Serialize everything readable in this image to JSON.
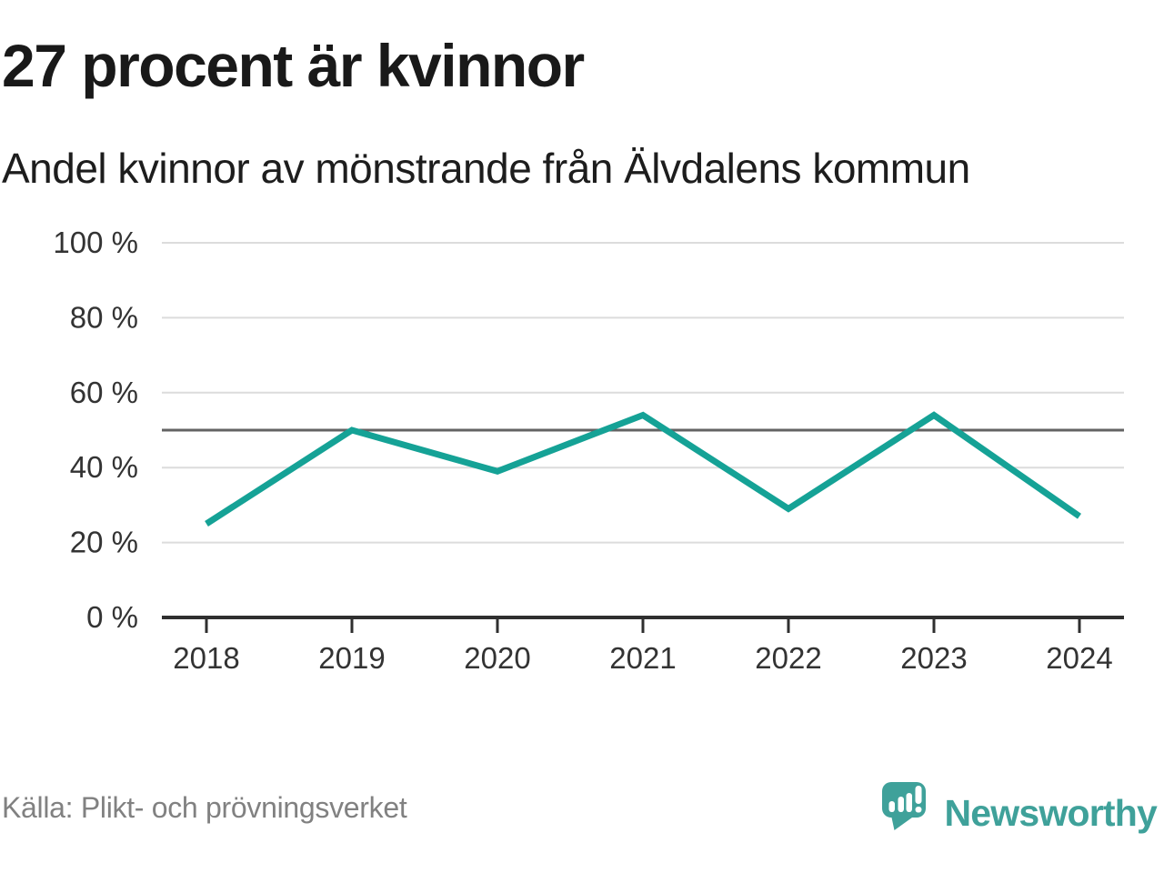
{
  "header": {
    "title": "27 procent är kvinnor",
    "subtitle": "Andel kvinnor av mönstrande från Älvdalens kommun"
  },
  "chart_data": {
    "type": "line",
    "title": "27 procent är kvinnor",
    "subtitle": "Andel kvinnor av mönstrande från Älvdalens kommun",
    "categories": [
      "2018",
      "2019",
      "2020",
      "2021",
      "2022",
      "2023",
      "2024"
    ],
    "series": [
      {
        "name": "Andel kvinnor av mönstrande",
        "values": [
          25,
          50,
          39,
          54,
          29,
          54,
          27
        ]
      }
    ],
    "unit": "%",
    "ylim": [
      0,
      100
    ],
    "yticks": [
      0,
      20,
      40,
      60,
      80,
      100
    ],
    "ytick_labels": [
      "0 %",
      "20 %",
      "40 %",
      "60 %",
      "80 %",
      "100 %"
    ],
    "reference_line": 50,
    "grid": "horizontal",
    "legend": "none",
    "colors": {
      "line": "#15a296",
      "gridline": "#dcdcdc",
      "reference_line": "#636363",
      "axis": "#2f2f2f",
      "tick_label": "#333333"
    }
  },
  "footer": {
    "source": "Källa: Plikt- och prövningsverket",
    "brand": "Newsworthy",
    "brand_color": "#3fa19a"
  }
}
